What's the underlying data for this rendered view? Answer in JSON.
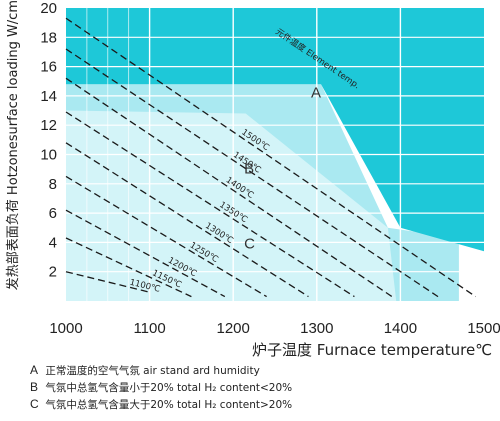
{
  "chart_data": {
    "type": "line",
    "xlabel": "炉子温度 Furnace temperature℃",
    "ylabel": "发热部表面负荷 Hotzonesurface loading W/cm²",
    "xlim": [
      1000,
      1500
    ],
    "ylim": [
      0,
      20
    ],
    "x_ticks": [
      "1000",
      "1100",
      "1200",
      "1300",
      "1400",
      "1500"
    ],
    "y_ticks": [
      "2",
      "4",
      "6",
      "8",
      "10",
      "12",
      "14",
      "16",
      "18",
      "20"
    ],
    "grid": true,
    "series": [
      {
        "name": "1100℃",
        "points": [
          [
            1000,
            2.0
          ],
          [
            1100,
            0.6
          ]
        ]
      },
      {
        "name": "1150℃",
        "points": [
          [
            1000,
            4.3
          ],
          [
            1150,
            0.3
          ]
        ]
      },
      {
        "name": "1200℃",
        "points": [
          [
            1000,
            6.2
          ],
          [
            1190,
            0.3
          ]
        ]
      },
      {
        "name": "1250℃",
        "points": [
          [
            1000,
            8.5
          ],
          [
            1240,
            0.3
          ]
        ]
      },
      {
        "name": "1300℃",
        "points": [
          [
            1000,
            10.8
          ],
          [
            1290,
            0.3
          ]
        ]
      },
      {
        "name": "1350℃",
        "points": [
          [
            1000,
            12.9
          ],
          [
            1345,
            0.3
          ]
        ]
      },
      {
        "name": "1400℃",
        "points": [
          [
            1000,
            15.2
          ],
          [
            1390,
            0.3
          ]
        ]
      },
      {
        "name": "1450℃",
        "points": [
          [
            1000,
            17.2
          ],
          [
            1445,
            0.3
          ]
        ]
      },
      {
        "name": "1500℃",
        "points": [
          [
            1000,
            19.3
          ],
          [
            1490,
            0.3
          ]
        ]
      }
    ],
    "element_temp_label": "元件温度 Element temp.",
    "regions": [
      {
        "label": "A",
        "x": 1293,
        "y": 13.9
      },
      {
        "label": "B",
        "x": 1213,
        "y": 8.7
      },
      {
        "label": "C",
        "x": 1213,
        "y": 3.6
      }
    ],
    "colors": {
      "dark_region": "#1ec8d8",
      "light_region": "#aae9f1",
      "lighter_region": "#d3f4f8",
      "grid": "#ffffff"
    }
  },
  "legend": [
    {
      "key": "A",
      "text": "正常温度的空气气氛  air stand  ard humidity"
    },
    {
      "key": "B",
      "text": "气氛中总氢气含量小于20%  total H₂ content<20%"
    },
    {
      "key": "C",
      "text": "气氛中总氢气含量大于20%  total H₂ content>20%"
    }
  ]
}
